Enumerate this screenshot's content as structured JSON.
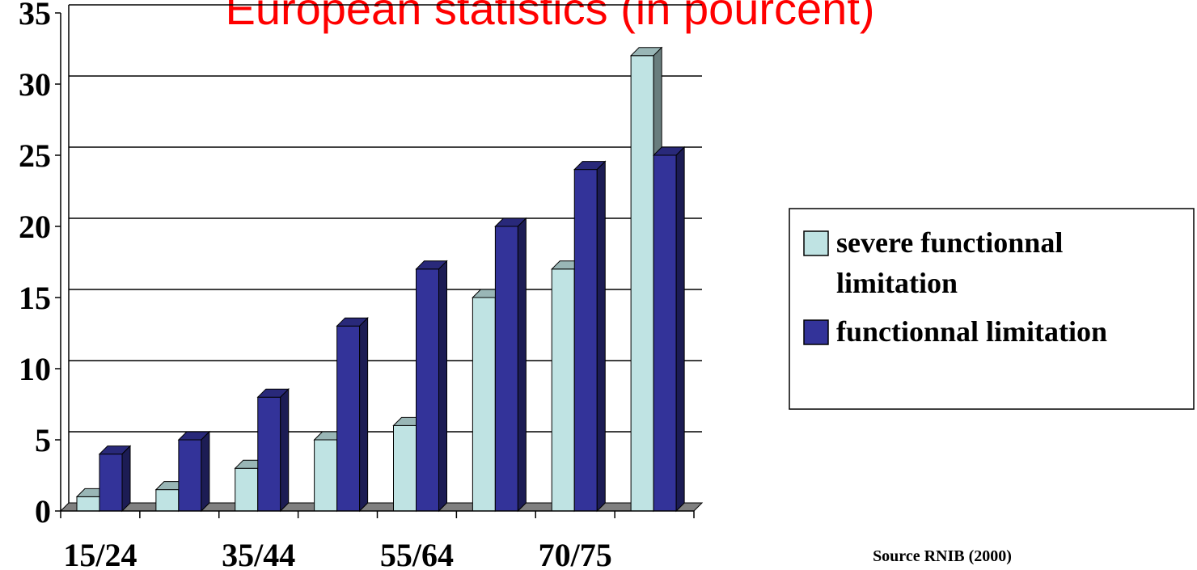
{
  "title": "European statistics (in pourcent)",
  "source": "Source RNIB (2000)",
  "colors": {
    "title": "#ff0000",
    "series_light": "#bfe3e3",
    "series_dark": "#333399",
    "grid": "#000000",
    "floor": "#808080"
  },
  "chart_data": {
    "type": "bar",
    "title": "European statistics (in pourcent)",
    "categories": [
      "15/24",
      "",
      "35/44",
      "",
      "55/64",
      "",
      "70/75",
      ""
    ],
    "series": [
      {
        "name": "severe functionnal limitation",
        "values": [
          1,
          1.5,
          3,
          5,
          6,
          15,
          17,
          32
        ]
      },
      {
        "name": "functionnal limitation",
        "values": [
          4,
          5,
          8,
          13,
          17,
          20,
          24,
          25
        ]
      }
    ],
    "xlabel": "",
    "ylabel": "",
    "ylim": [
      0,
      35
    ],
    "yticks": [
      0,
      5,
      10,
      15,
      20,
      25,
      30,
      35
    ],
    "grid": true,
    "legend_position": "right",
    "bar_style": "3d"
  }
}
